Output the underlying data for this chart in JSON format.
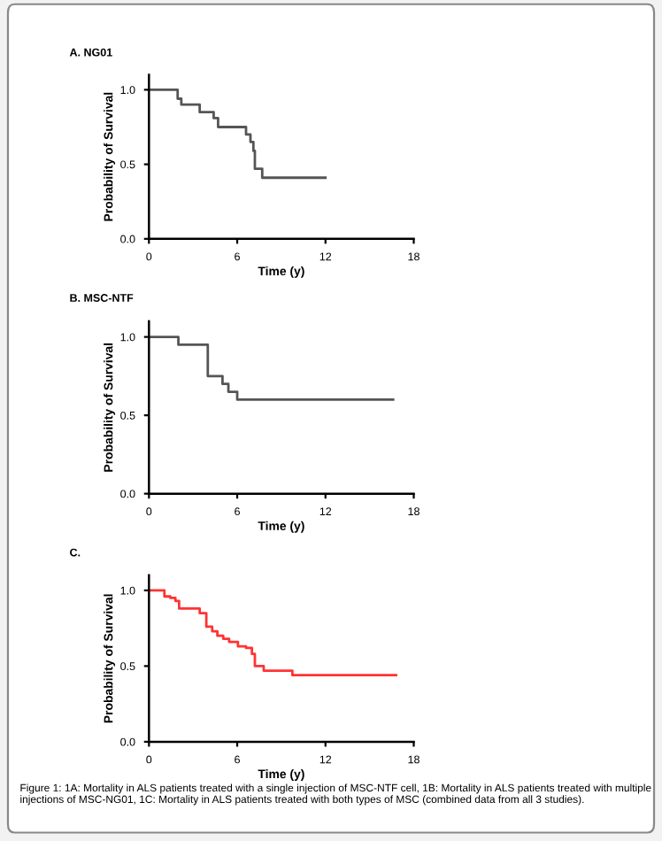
{
  "chart_data": [
    {
      "type": "step",
      "title": "A. NG01",
      "xlabel": "Time (y)",
      "ylabel": "Probability of Survival",
      "xlim": [
        0,
        18
      ],
      "xticks": [
        0,
        6,
        12,
        18
      ],
      "ylim": [
        0,
        1.1
      ],
      "yticks": [
        {
          "value": 0,
          "label": "0.0"
        },
        {
          "value": 0.5,
          "label": "0.5"
        },
        {
          "value": 1,
          "label": "1.0"
        }
      ],
      "grid": false,
      "series": [
        {
          "color": "#555555",
          "x": [
            0,
            1.95,
            2.2,
            3.45,
            4.4,
            4.7,
            6.6,
            6.9,
            7.1,
            7.2,
            7.7,
            12
          ],
          "values": [
            1.0,
            0.94,
            0.9,
            0.85,
            0.81,
            0.75,
            0.7,
            0.65,
            0.59,
            0.47,
            0.41,
            0.41
          ]
        }
      ]
    },
    {
      "type": "step",
      "title": "B. MSC-NTF",
      "xlabel": "Time (y)",
      "ylabel": "Probability of Survival",
      "xlim": [
        0,
        18
      ],
      "xticks": [
        0,
        6,
        12,
        18
      ],
      "ylim": [
        0,
        1.1
      ],
      "yticks": [
        {
          "value": 0,
          "label": "0.0"
        },
        {
          "value": 0.5,
          "label": "0.5"
        },
        {
          "value": 1,
          "label": "1.0"
        }
      ],
      "grid": false,
      "series": [
        {
          "color": "#555555",
          "x": [
            0,
            2.0,
            4.0,
            5.0,
            5.4,
            6.0,
            16.6
          ],
          "values": [
            1.0,
            0.95,
            0.75,
            0.7,
            0.65,
            0.6,
            0.6
          ]
        }
      ]
    },
    {
      "type": "step",
      "title": "C.",
      "xlabel": "Time (y)",
      "ylabel": "Probability of Survival",
      "xlim": [
        0,
        18
      ],
      "xticks": [
        0,
        6,
        12,
        18
      ],
      "ylim": [
        0,
        1.1
      ],
      "yticks": [
        {
          "value": 0,
          "label": "0.0"
        },
        {
          "value": 0.5,
          "label": "0.5"
        },
        {
          "value": 1,
          "label": "1.0"
        }
      ],
      "grid": false,
      "series": [
        {
          "color": "#ff3333",
          "x": [
            0,
            1.05,
            1.45,
            1.8,
            2.05,
            3.45,
            3.9,
            4.3,
            4.65,
            5.05,
            5.45,
            6.05,
            6.6,
            7.0,
            7.2,
            7.8,
            9.75,
            16.8
          ],
          "values": [
            1.0,
            0.96,
            0.95,
            0.93,
            0.88,
            0.85,
            0.76,
            0.73,
            0.7,
            0.68,
            0.66,
            0.63,
            0.62,
            0.58,
            0.5,
            0.47,
            0.44,
            0.44
          ]
        }
      ],
      "annotations": [
        "Figure 1: 1A: Mortality in ALS patients treated with a single injection of MSC-NTF cell, 1B: Mortality in ALS patients treated with multiple injections of MSC-NG01, 1C: Mortality in ALS patients treated with both types of MSC (combined data from all 3 studies)."
      ]
    }
  ]
}
